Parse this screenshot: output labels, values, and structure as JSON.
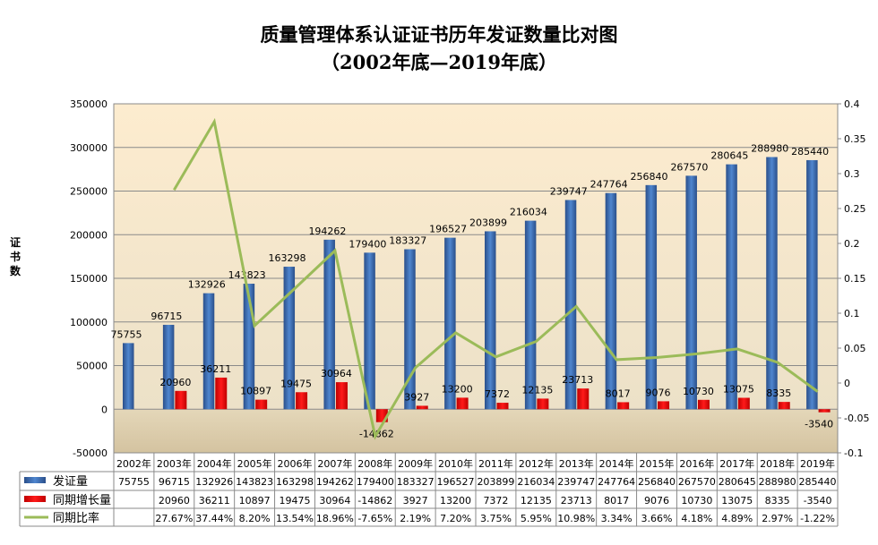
{
  "chart_data": {
    "type": "bar",
    "title": "质量管理体系认证证书历年发证数量比对图",
    "subtitle": "（2002年底—2019年底）",
    "ylabel": "证书数",
    "ylim": [
      -50000,
      350000
    ],
    "y_ticks": [
      "350000",
      "300000",
      "250000",
      "200000",
      "150000",
      "100000",
      "50000",
      "0",
      "-50000"
    ],
    "y2lim": [
      -0.1,
      0.4
    ],
    "y2_ticks": [
      "0.4",
      "0.35",
      "0.3",
      "0.25",
      "0.2",
      "0.15",
      "0.1",
      "0.05",
      "0",
      "-0.05",
      "-0.1"
    ],
    "grid": true,
    "legend": "data-table-left",
    "categories": [
      "2002年",
      "2003年",
      "2004年",
      "2005年",
      "2006年",
      "2007年",
      "2008年",
      "2009年",
      "2010年",
      "2011年",
      "2012年",
      "2013年",
      "2014年",
      "2015年",
      "2016年",
      "2017年",
      "2018年",
      "2019年"
    ],
    "series": [
      {
        "name": "发证量",
        "type": "bar",
        "axis": "left",
        "color": "#3a6bb0",
        "values": [
          75755,
          96715,
          132926,
          143823,
          163298,
          194262,
          179400,
          183327,
          196527,
          203899,
          216034,
          239747,
          247764,
          256840,
          267570,
          280645,
          288980,
          285440
        ],
        "labels": [
          "75755",
          "96715",
          "132926",
          "143823",
          "163298",
          "194262",
          "179400",
          "183327",
          "196527",
          "203899",
          "216034",
          "239747",
          "247764",
          "256840",
          "267570",
          "280645",
          "288980",
          "285440"
        ]
      },
      {
        "name": "同期增长量",
        "type": "bar",
        "axis": "left",
        "color": "#e60000",
        "values": [
          null,
          20960,
          36211,
          10897,
          19475,
          30964,
          -14862,
          3927,
          13200,
          7372,
          12135,
          23713,
          8017,
          9076,
          10730,
          13075,
          8335,
          -3540
        ],
        "labels": [
          "",
          "20960",
          "36211",
          "10897",
          "19475",
          "30964",
          "-14862",
          "3927",
          "13200",
          "7372",
          "12135",
          "23713",
          "8017",
          "9076",
          "10730",
          "13075",
          "8335",
          "-3540"
        ]
      },
      {
        "name": "同期比率",
        "type": "line",
        "axis": "right",
        "color": "#9bbb59",
        "values": [
          null,
          0.2767,
          0.3744,
          0.082,
          0.1354,
          0.1896,
          -0.0765,
          0.0219,
          0.072,
          0.0375,
          0.0595,
          0.1098,
          0.0334,
          0.0366,
          0.0418,
          0.0489,
          0.0297,
          -0.0122
        ],
        "labels": [
          "",
          "27.67%",
          "37.44%",
          "8.20%",
          "13.54%",
          "18.96%",
          "-7.65%",
          "2.19%",
          "7.20%",
          "3.75%",
          "5.95%",
          "10.98%",
          "3.34%",
          "3.66%",
          "4.18%",
          "4.89%",
          "2.97%",
          "-1.22%"
        ]
      }
    ]
  }
}
